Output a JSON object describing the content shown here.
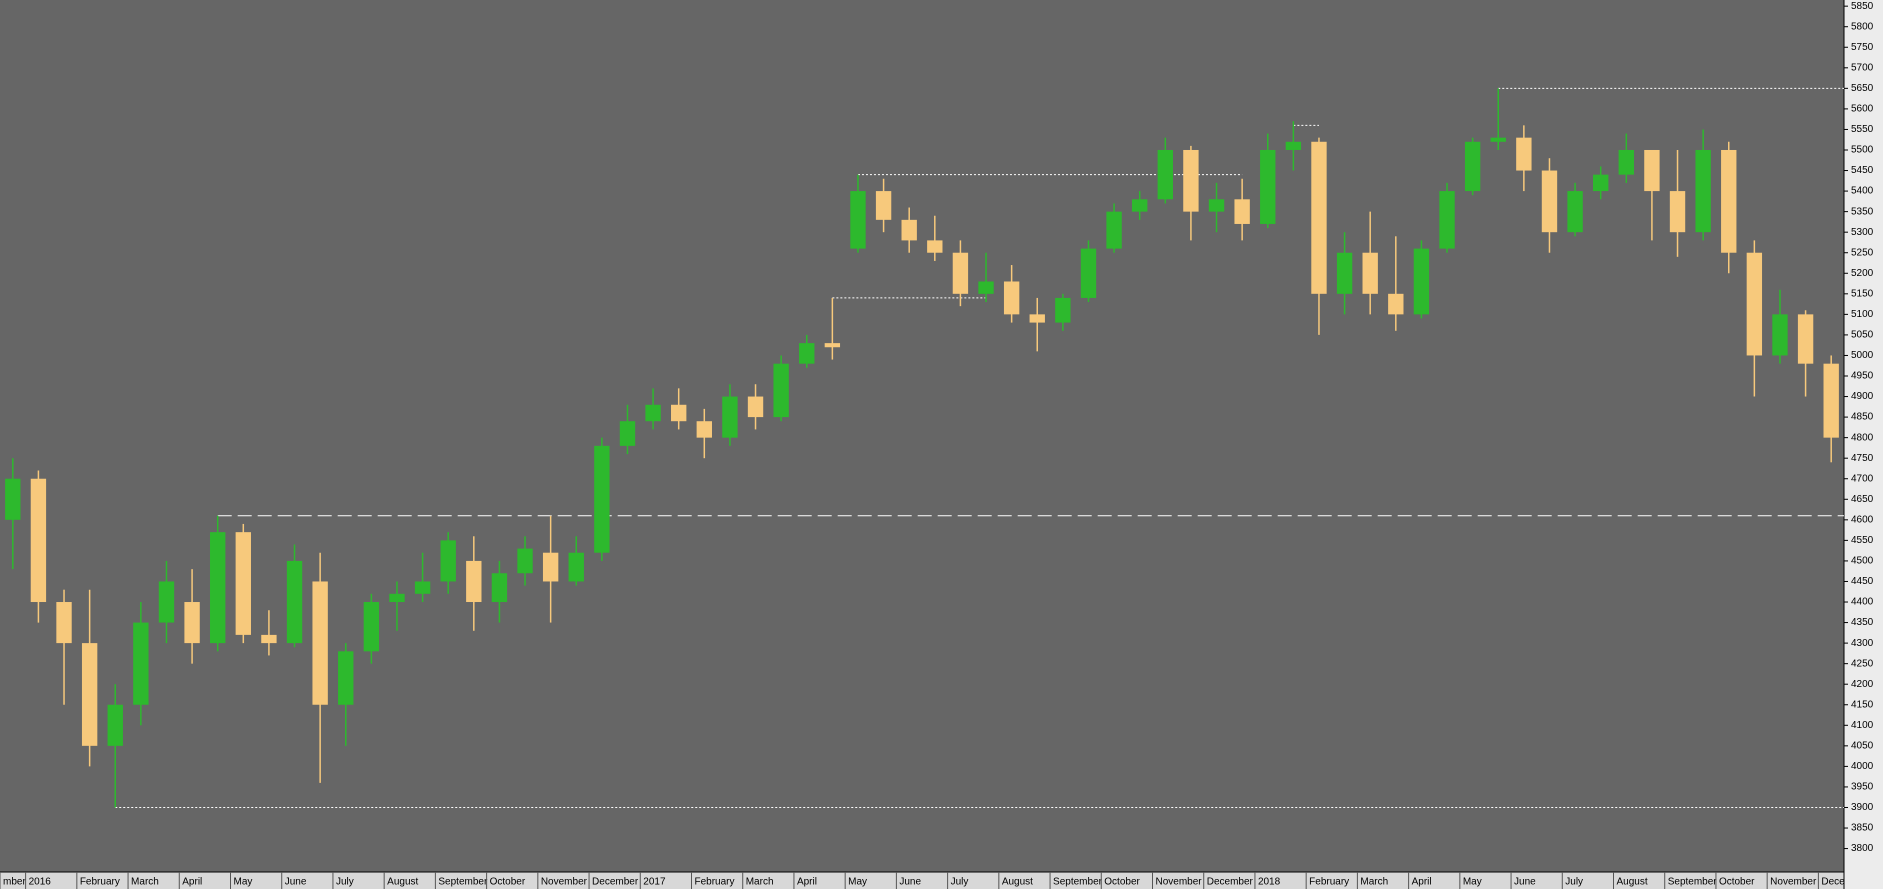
{
  "chart_data": {
    "type": "candlestick",
    "categories": [
      "mber",
      "2016",
      null,
      "February",
      null,
      "March",
      null,
      "April",
      null,
      "May",
      null,
      "June",
      null,
      "July",
      null,
      "August",
      null,
      "September",
      null,
      "October",
      null,
      "November",
      null,
      "December",
      null,
      "2017",
      null,
      "February",
      null,
      "March",
      null,
      "April",
      null,
      "May",
      null,
      "June",
      null,
      "July",
      null,
      "August",
      null,
      "September",
      null,
      "October",
      null,
      "November",
      null,
      "December",
      null,
      "2018",
      null,
      "February",
      null,
      "March",
      null,
      "April",
      null,
      "May",
      null,
      "June",
      null,
      "July",
      null,
      "August",
      null,
      "September",
      null,
      "October",
      null,
      "November",
      null,
      "December"
    ],
    "open": [
      4600,
      4700,
      4400,
      4300,
      4050,
      4150,
      4350,
      4400,
      4300,
      4570,
      4320,
      4300,
      4450,
      4150,
      4280,
      4400,
      4420,
      4450,
      4500,
      4400,
      4470,
      4520,
      4450,
      4520,
      4780,
      4840,
      4880,
      4840,
      4800,
      4900,
      4850,
      4980,
      5030,
      5260,
      5400,
      5330,
      5280,
      5250,
      5150,
      5180,
      5100,
      5080,
      5140,
      5260,
      5350,
      5380,
      5500,
      5350,
      5380,
      5320,
      5500,
      5520,
      5150,
      5250,
      5150,
      5100,
      5260,
      5400,
      5520,
      5530,
      5450,
      5300,
      5400,
      5440,
      5500,
      5400,
      5300,
      5500,
      5250,
      5000,
      5100,
      4980
    ],
    "high": [
      4750,
      4720,
      4430,
      4430,
      4200,
      4400,
      4500,
      4480,
      4610,
      4590,
      4380,
      4540,
      4520,
      4300,
      4420,
      4450,
      4520,
      4570,
      4560,
      4500,
      4560,
      4610,
      4560,
      4800,
      4880,
      4920,
      4920,
      4870,
      4930,
      4930,
      5000,
      5050,
      5140,
      5440,
      5430,
      5360,
      5340,
      5280,
      5250,
      5220,
      5140,
      5150,
      5280,
      5370,
      5400,
      5530,
      5510,
      5420,
      5430,
      5540,
      5570,
      5530,
      5300,
      5350,
      5290,
      5280,
      5420,
      5530,
      5650,
      5560,
      5480,
      5420,
      5460,
      5540,
      5500,
      5500,
      5550,
      5520,
      5280,
      5160,
      5110,
      5000
    ],
    "low": [
      4480,
      4350,
      4150,
      4000,
      3900,
      4100,
      4300,
      4250,
      4280,
      4300,
      4270,
      4290,
      3960,
      4050,
      4250,
      4330,
      4400,
      4420,
      4330,
      4350,
      4440,
      4350,
      4440,
      4500,
      4760,
      4820,
      4820,
      4750,
      4780,
      4820,
      4840,
      4970,
      4990,
      5250,
      5300,
      5250,
      5230,
      5120,
      5130,
      5080,
      5010,
      5060,
      5130,
      5250,
      5330,
      5370,
      5280,
      5300,
      5280,
      5310,
      5450,
      5050,
      5100,
      5100,
      5060,
      5090,
      5250,
      5390,
      5500,
      5400,
      5250,
      5290,
      5380,
      5420,
      5280,
      5240,
      5280,
      5200,
      4900,
      4980,
      4900,
      4740
    ],
    "close": [
      4700,
      4400,
      4300,
      4050,
      4150,
      4350,
      4450,
      4300,
      4570,
      4320,
      4300,
      4500,
      4150,
      4280,
      4400,
      4420,
      4450,
      4550,
      4400,
      4470,
      4530,
      4450,
      4520,
      4780,
      4840,
      4880,
      4840,
      4800,
      4900,
      4850,
      4980,
      5030,
      5020,
      5400,
      5330,
      5280,
      5250,
      5150,
      5180,
      5100,
      5080,
      5140,
      5260,
      5350,
      5380,
      5500,
      5350,
      5380,
      5320,
      5500,
      5520,
      5150,
      5250,
      5150,
      5100,
      5260,
      5400,
      5520,
      5530,
      5450,
      5300,
      5400,
      5440,
      5500,
      5400,
      5300,
      5500,
      5250,
      5000,
      5100,
      4980,
      4800
    ],
    "up_color": "#2db92d",
    "down_color": "#f7c97c",
    "ylim": [
      3743,
      5865
    ],
    "yticks": [
      3800,
      3850,
      3900,
      3950,
      4000,
      4050,
      4100,
      4150,
      4200,
      4250,
      4300,
      4350,
      4400,
      4450,
      4500,
      4550,
      4600,
      4650,
      4700,
      4750,
      4800,
      4850,
      4900,
      4950,
      5000,
      5050,
      5100,
      5150,
      5200,
      5250,
      5300,
      5350,
      5400,
      5450,
      5500,
      5550,
      5600,
      5650,
      5700,
      5750,
      5800,
      5850
    ],
    "levels": [
      {
        "value": 3900,
        "start": 4,
        "end": 71,
        "style": "dotted"
      },
      {
        "value": 4610,
        "start": 8,
        "end": 71,
        "style": "dashed"
      },
      {
        "value": 5140,
        "start": 32,
        "end": 38,
        "style": "dotted"
      },
      {
        "value": 5440,
        "start": 33,
        "end": 48,
        "style": "dotted"
      },
      {
        "value": 5560,
        "start": 50,
        "end": 51,
        "style": "dotted"
      },
      {
        "value": 5650,
        "start": 58,
        "end": 71,
        "style": "dotted"
      }
    ]
  }
}
